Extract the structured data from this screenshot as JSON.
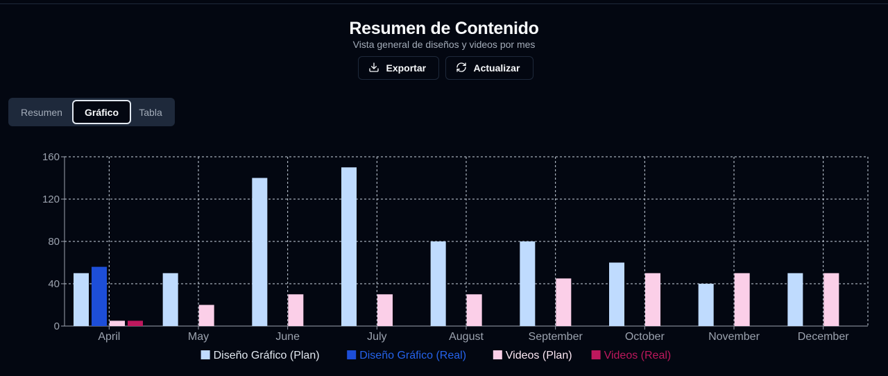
{
  "header": {
    "title": "Resumen de Contenido",
    "subtitle": "Vista general de diseños y videos por mes"
  },
  "actions": {
    "export_label": "Exportar",
    "refresh_label": "Actualizar"
  },
  "tabs": [
    {
      "label": "Resumen",
      "active": false
    },
    {
      "label": "Gráfico",
      "active": true
    },
    {
      "label": "Tabla",
      "active": false
    }
  ],
  "icons": {
    "export": "download-icon",
    "refresh": "refresh-icon"
  },
  "chart_data": {
    "type": "bar",
    "categories": [
      "April",
      "May",
      "June",
      "July",
      "August",
      "September",
      "October",
      "November",
      "December"
    ],
    "ylim": [
      0,
      160
    ],
    "yticks": [
      0,
      40,
      80,
      120,
      160
    ],
    "grid": true,
    "legend_position": "bottom",
    "series": [
      {
        "name": "Diseño Gráfico (Plan)",
        "color": "#bfdbfe",
        "values": [
          50,
          50,
          140,
          150,
          80,
          80,
          60,
          40,
          50
        ]
      },
      {
        "name": "Diseño Gráfico (Real)",
        "color": "#1d4ed8",
        "values": [
          56,
          0,
          0,
          0,
          0,
          0,
          0,
          0,
          0
        ]
      },
      {
        "name": "Videos (Plan)",
        "color": "#fbcfe8",
        "values": [
          5,
          20,
          30,
          30,
          30,
          45,
          50,
          50,
          50
        ]
      },
      {
        "name": "Videos (Real)",
        "color": "#be185d",
        "values": [
          5,
          0,
          0,
          0,
          0,
          0,
          0,
          0,
          0
        ]
      }
    ],
    "legend_text_colors": [
      "#e2e8f0",
      "#2563eb",
      "#fce7f3",
      "#be185d"
    ]
  }
}
